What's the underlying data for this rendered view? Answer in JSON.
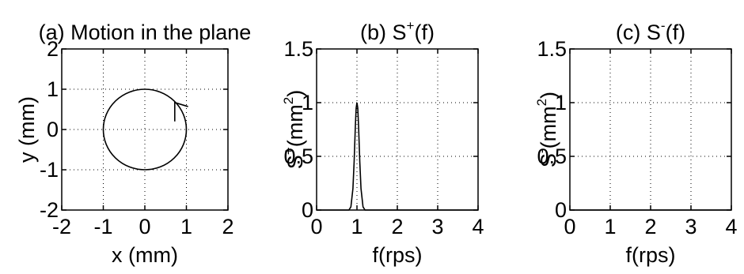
{
  "chart_data": [
    {
      "type": "line",
      "title": "(a) Motion in the plane",
      "xlabel": "x (mm)",
      "ylabel": "y (mm)",
      "xlim": [
        -2,
        2
      ],
      "ylim": [
        -2,
        2
      ],
      "xticks": [
        "-2",
        "-1",
        "0",
        "1",
        "2"
      ],
      "yticks": [
        "-2",
        "-1",
        "0",
        "1",
        "2"
      ],
      "grid": true,
      "series": [
        {
          "shape": "circle",
          "center": [
            0,
            0
          ],
          "radius": 1,
          "arrow": {
            "x": [
              0.72,
              0.72,
              1.04
            ],
            "y": [
              0.2,
              0.67,
              0.57
            ]
          }
        }
      ]
    },
    {
      "type": "line",
      "title": {
        "prefix": "(b)  S",
        "sup": "+",
        "suffix": "(f)"
      },
      "xlabel": "f(rps)",
      "ylabel": {
        "prefix": "S",
        "sup1": "+",
        "mid": "(mm",
        "sup2": "2",
        "suffix": ")"
      },
      "xlim": [
        0,
        4
      ],
      "ylim": [
        0,
        1.5
      ],
      "xticks": [
        "0",
        "1",
        "2",
        "3",
        "4"
      ],
      "yticks": [
        "0",
        "0.5",
        "1",
        "1.5"
      ],
      "grid": true,
      "series": [
        {
          "x": [
            0,
            0.8,
            0.85,
            0.9,
            0.93,
            0.96,
            0.98,
            1.0,
            1.02,
            1.04,
            1.07,
            1.1,
            1.15,
            1.2,
            4
          ],
          "y": [
            0,
            0,
            0.03,
            0.2,
            0.45,
            0.78,
            0.95,
            1.0,
            0.95,
            0.78,
            0.45,
            0.2,
            0.03,
            0,
            0
          ]
        }
      ]
    },
    {
      "type": "line",
      "title": {
        "prefix": "(c)  S",
        "sup": "-",
        "suffix": "(f)"
      },
      "xlabel": "f(rps)",
      "ylabel": {
        "prefix": "S",
        "sup1": "-",
        "mid": "(mm",
        "sup2": "2",
        "suffix": ")"
      },
      "xlim": [
        0,
        4
      ],
      "ylim": [
        0,
        1.5
      ],
      "xticks": [
        "0",
        "1",
        "2",
        "3",
        "4"
      ],
      "yticks": [
        "0",
        "0.5",
        "1",
        "1.5"
      ],
      "grid": true,
      "series": [
        {
          "x": [
            0,
            4
          ],
          "y": [
            0,
            0
          ]
        }
      ]
    }
  ]
}
